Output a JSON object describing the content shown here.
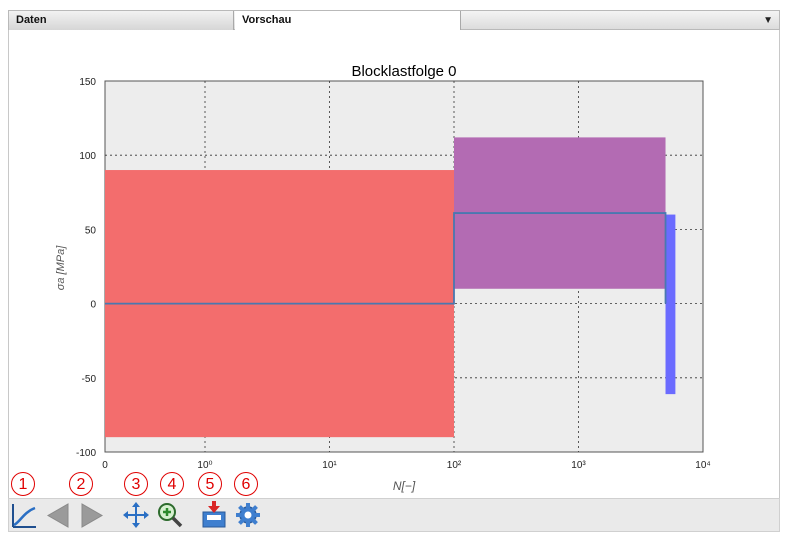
{
  "tabs": [
    {
      "label": "Daten"
    },
    {
      "label": "Vorschau"
    }
  ],
  "tab_menu_icon": "dropdown-arrow-icon",
  "chart_data": {
    "type": "bar",
    "title": "Blocklastfolge 0",
    "xlabel": "N[−]",
    "ylabel": "σa [MPa]",
    "xscale": "log",
    "xlim_ticks": [
      {
        "label": "0",
        "value": 0
      },
      {
        "label": "10⁰",
        "value": 1
      },
      {
        "label": "10¹",
        "value": 10
      },
      {
        "label": "10²",
        "value": 100
      },
      {
        "label": "10³",
        "value": 1000
      },
      {
        "label": "10⁴",
        "value": 10000
      }
    ],
    "yticks": [
      150,
      100,
      50,
      0,
      -50,
      -100
    ],
    "ylim": [
      -100,
      150
    ],
    "grid": true,
    "blocks": [
      {
        "color": "#f36d6d",
        "x_start": 0,
        "x_end": 100,
        "y_min": -90,
        "y_max": 90
      },
      {
        "color": "#b36bb3",
        "x_start": 100,
        "x_end": 5000,
        "y_min": 10,
        "y_max": 112
      },
      {
        "color": "#6b6bff",
        "x_start": 5000,
        "x_end": 6000,
        "y_min": -61,
        "y_max": 60
      }
    ],
    "mean_line": [
      {
        "x_start": 0,
        "x_end": 100,
        "y": 0
      },
      {
        "x_start": 100,
        "x_end": 5000,
        "y": 61
      }
    ]
  },
  "toolbar": {
    "buttons": [
      {
        "number": "1",
        "icon": "curve-icon"
      },
      {
        "number": "2",
        "icon": "back-forward-arrows-icon"
      },
      {
        "number": "3",
        "icon": "pan-arrows-icon"
      },
      {
        "number": "4",
        "icon": "zoom-icon"
      },
      {
        "number": "5",
        "icon": "save-icon"
      },
      {
        "number": "6",
        "icon": "settings-gear-icon"
      }
    ]
  }
}
